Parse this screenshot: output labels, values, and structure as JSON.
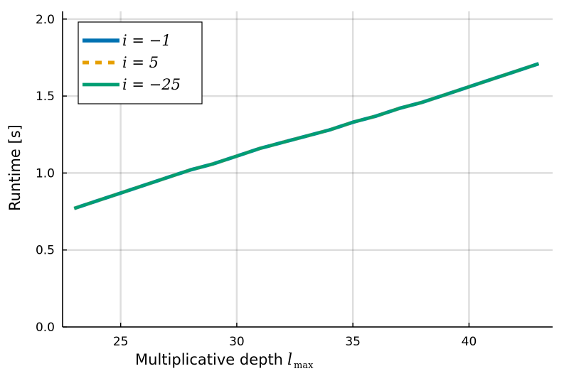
{
  "chart_data": {
    "type": "line",
    "xlabel": "Multiplicative depth",
    "xlabel_math": "l",
    "xlabel_sub": "max",
    "ylabel": "Runtime [s]",
    "xlim": [
      22.5,
      43.6
    ],
    "ylim": [
      0.0,
      2.05
    ],
    "xticks": [
      25,
      30,
      35,
      40
    ],
    "yticks": [
      0.0,
      0.5,
      1.0,
      1.5,
      2.0
    ],
    "xtick_labels": [
      "25",
      "30",
      "35",
      "40"
    ],
    "ytick_labels": [
      "0.0",
      "0.5",
      "1.0",
      "1.5",
      "2.0"
    ],
    "grid": true,
    "legend_position": "top-left",
    "series": [
      {
        "name": "i = −1",
        "color": "#0072B2",
        "style": "solid",
        "x": [
          23,
          24,
          25,
          26,
          27,
          28,
          29,
          30,
          31,
          32,
          33,
          34,
          35,
          36,
          37,
          38,
          39,
          40,
          41,
          42,
          43
        ],
        "y": [
          0.77,
          0.82,
          0.87,
          0.92,
          0.97,
          1.02,
          1.06,
          1.11,
          1.16,
          1.2,
          1.24,
          1.28,
          1.33,
          1.37,
          1.42,
          1.46,
          1.51,
          1.56,
          1.61,
          1.66,
          1.71
        ]
      },
      {
        "name": "i = 5",
        "color": "#E69F00",
        "style": "dashed",
        "x": [
          23,
          24,
          25,
          26,
          27,
          28,
          29,
          30,
          31,
          32,
          33,
          34,
          35,
          36,
          37,
          38,
          39,
          40,
          41,
          42,
          43
        ],
        "y": [
          0.77,
          0.82,
          0.87,
          0.92,
          0.97,
          1.02,
          1.06,
          1.11,
          1.16,
          1.2,
          1.24,
          1.28,
          1.33,
          1.37,
          1.42,
          1.46,
          1.51,
          1.56,
          1.61,
          1.66,
          1.71
        ]
      },
      {
        "name": "i = −25",
        "color": "#009E73",
        "style": "solid",
        "x": [
          23,
          24,
          25,
          26,
          27,
          28,
          29,
          30,
          31,
          32,
          33,
          34,
          35,
          36,
          37,
          38,
          39,
          40,
          41,
          42,
          43
        ],
        "y": [
          0.77,
          0.82,
          0.87,
          0.92,
          0.97,
          1.02,
          1.06,
          1.11,
          1.16,
          1.2,
          1.24,
          1.28,
          1.33,
          1.37,
          1.42,
          1.46,
          1.51,
          1.56,
          1.61,
          1.66,
          1.71
        ]
      }
    ]
  }
}
